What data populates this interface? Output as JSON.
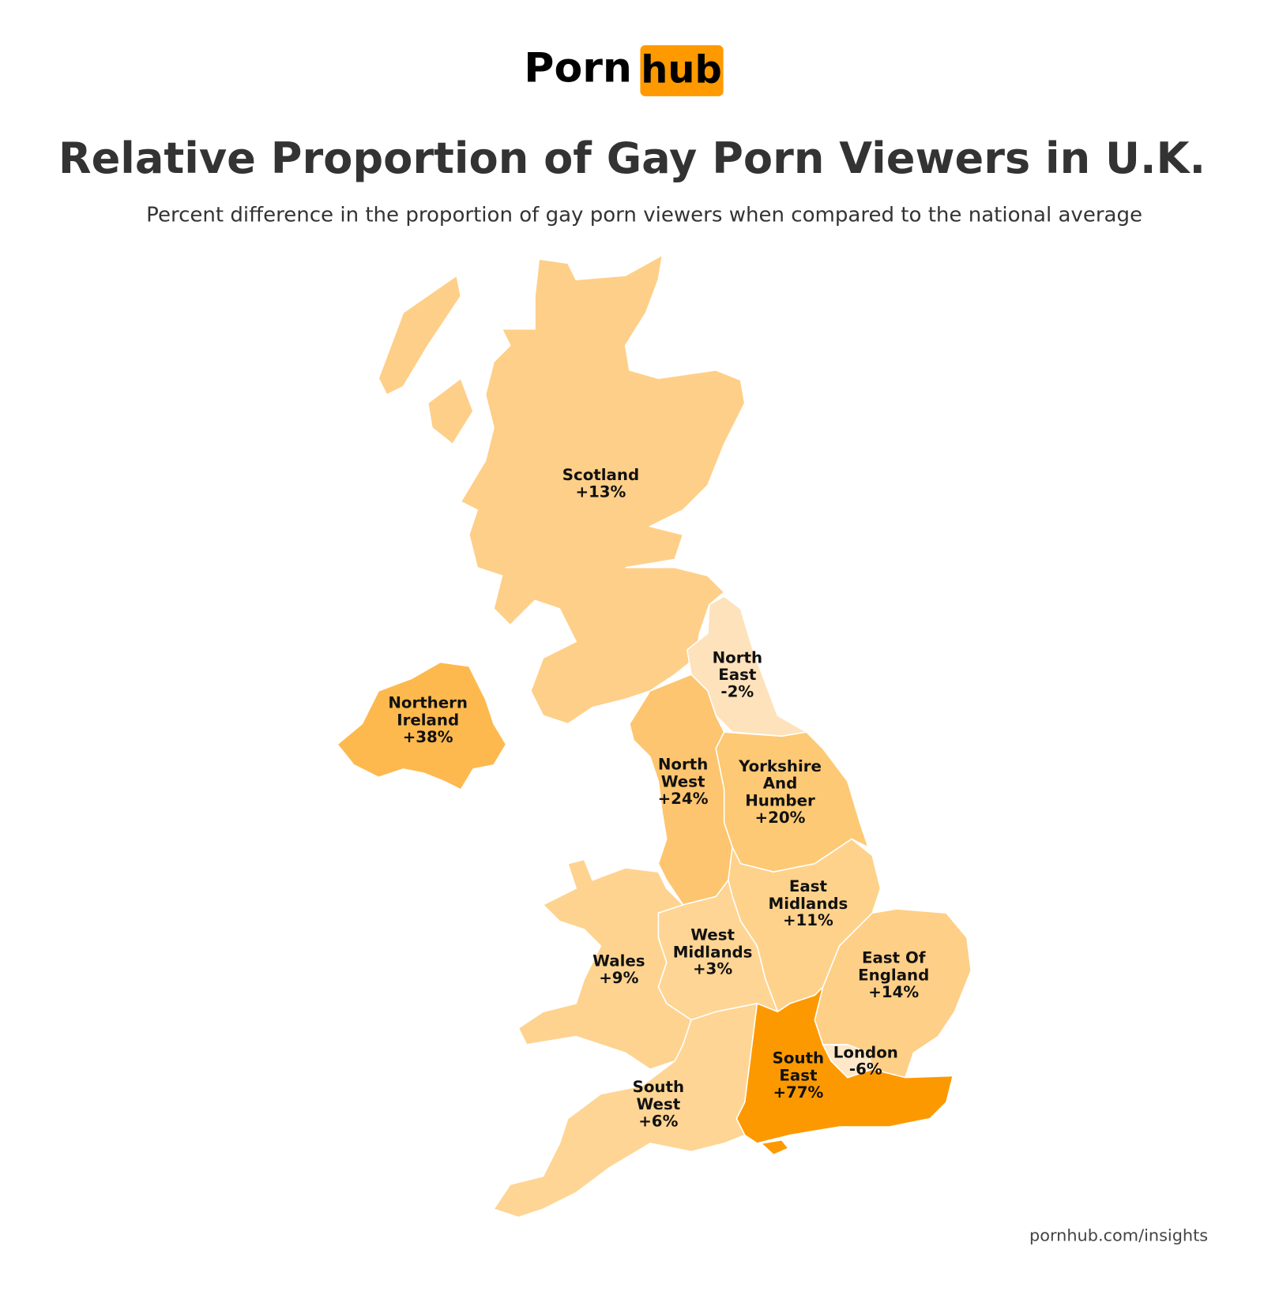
{
  "logo": {
    "left": "Porn",
    "right": "hub"
  },
  "title": "Relative Proportion of Gay Porn Viewers in U.K.",
  "subtitle": "Percent difference in the proportion of gay porn viewers when compared to the national average",
  "regions": [
    {
      "name": "Scotland",
      "value": 13,
      "value_label": "+13%",
      "color": "#fecf88"
    },
    {
      "name": "Northern Ireland",
      "value": 38,
      "value_label": "+38%",
      "color": "#fdb94e"
    },
    {
      "name": "North East",
      "value": -2,
      "value_label": "-2%",
      "color": "#fee2bb"
    },
    {
      "name": "North West",
      "value": 24,
      "value_label": "+24%",
      "color": "#fdc56f"
    },
    {
      "name": "Yorkshire And Humber",
      "value": 20,
      "value_label": "+20%",
      "color": "#fdc974"
    },
    {
      "name": "East Midlands",
      "value": 11,
      "value_label": "+11%",
      "color": "#fed28b"
    },
    {
      "name": "West Midlands",
      "value": 3,
      "value_label": "+3%",
      "color": "#fed594"
    },
    {
      "name": "Wales",
      "value": 9,
      "value_label": "+9%",
      "color": "#fed390"
    },
    {
      "name": "East Of England",
      "value": 14,
      "value_label": "+14%",
      "color": "#fecf86"
    },
    {
      "name": "South East",
      "value": 77,
      "value_label": "+77%",
      "color": "#fd9900"
    },
    {
      "name": "London",
      "value": -6,
      "value_label": "-6%",
      "color": "#fee8c8"
    },
    {
      "name": "South West",
      "value": 6,
      "value_label": "+6%",
      "color": "#fed594"
    }
  ],
  "source": "pornhub.com/insights"
}
